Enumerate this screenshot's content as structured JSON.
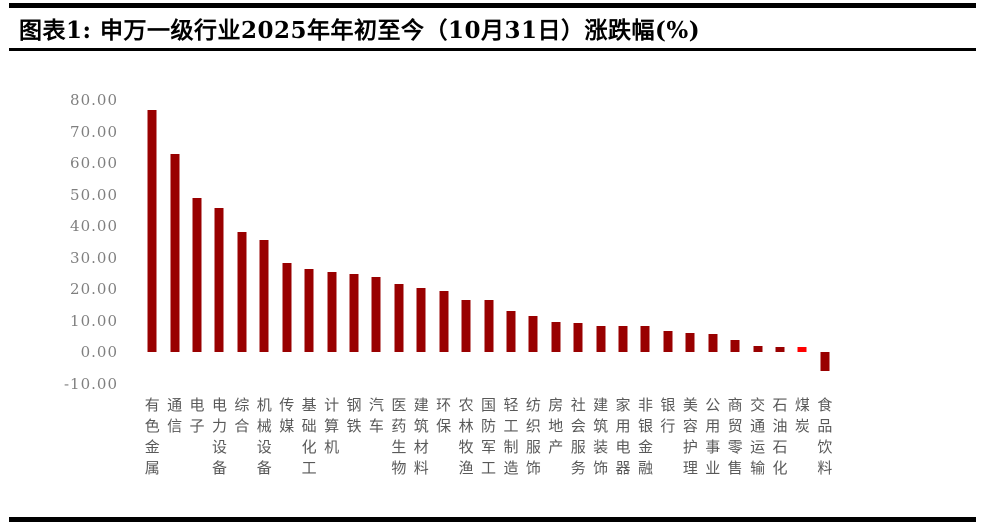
{
  "header": {
    "title": "图表1: 申万一级行业2025年年初至今（10月31日）涨跌幅(%)"
  },
  "chart_data": {
    "type": "bar",
    "title": "申万一级行业2025年年初至今（10月31日）涨跌幅(%)",
    "xlabel": "",
    "ylabel": "",
    "ylim": [
      -10,
      80
    ],
    "y_ticks": [
      80,
      70,
      60,
      50,
      40,
      30,
      20,
      10,
      0,
      -10
    ],
    "y_tick_decimals": 2,
    "grid": false,
    "legend": null,
    "bar_color": "#990000",
    "highlight_index": 29,
    "highlight_color": "#ff0000",
    "categories": [
      "有色金属",
      "通信",
      "电子",
      "电力设备",
      "综合",
      "机械设备",
      "传媒",
      "基础化工",
      "计算机",
      "钢铁",
      "汽车",
      "医药生物",
      "建筑材料",
      "环保",
      "农林牧渔",
      "国防军工",
      "轻工制造",
      "纺织服饰",
      "房地产",
      "社会服务",
      "建筑装饰",
      "家用电器",
      "非银金融",
      "银行",
      "美容护理",
      "公用事业",
      "商贸零售",
      "交通运输",
      "石油石化",
      "煤炭",
      "食品饮料"
    ],
    "values": [
      76.8,
      62.8,
      48.8,
      45.8,
      38.2,
      35.6,
      28.4,
      26.6,
      25.5,
      25.0,
      24.0,
      21.7,
      20.4,
      19.5,
      16.7,
      16.6,
      13.2,
      11.6,
      9.5,
      9.2,
      8.5,
      8.4,
      8.4,
      6.7,
      6.3,
      5.9,
      4.1,
      1.9,
      1.7,
      1.7,
      -5.8
    ]
  },
  "colors": {
    "bar": "#990000",
    "highlight": "#ff0000",
    "y_tick_text": "#7f7f7f",
    "x_tick_text": "#595959",
    "rule": "#000000"
  }
}
